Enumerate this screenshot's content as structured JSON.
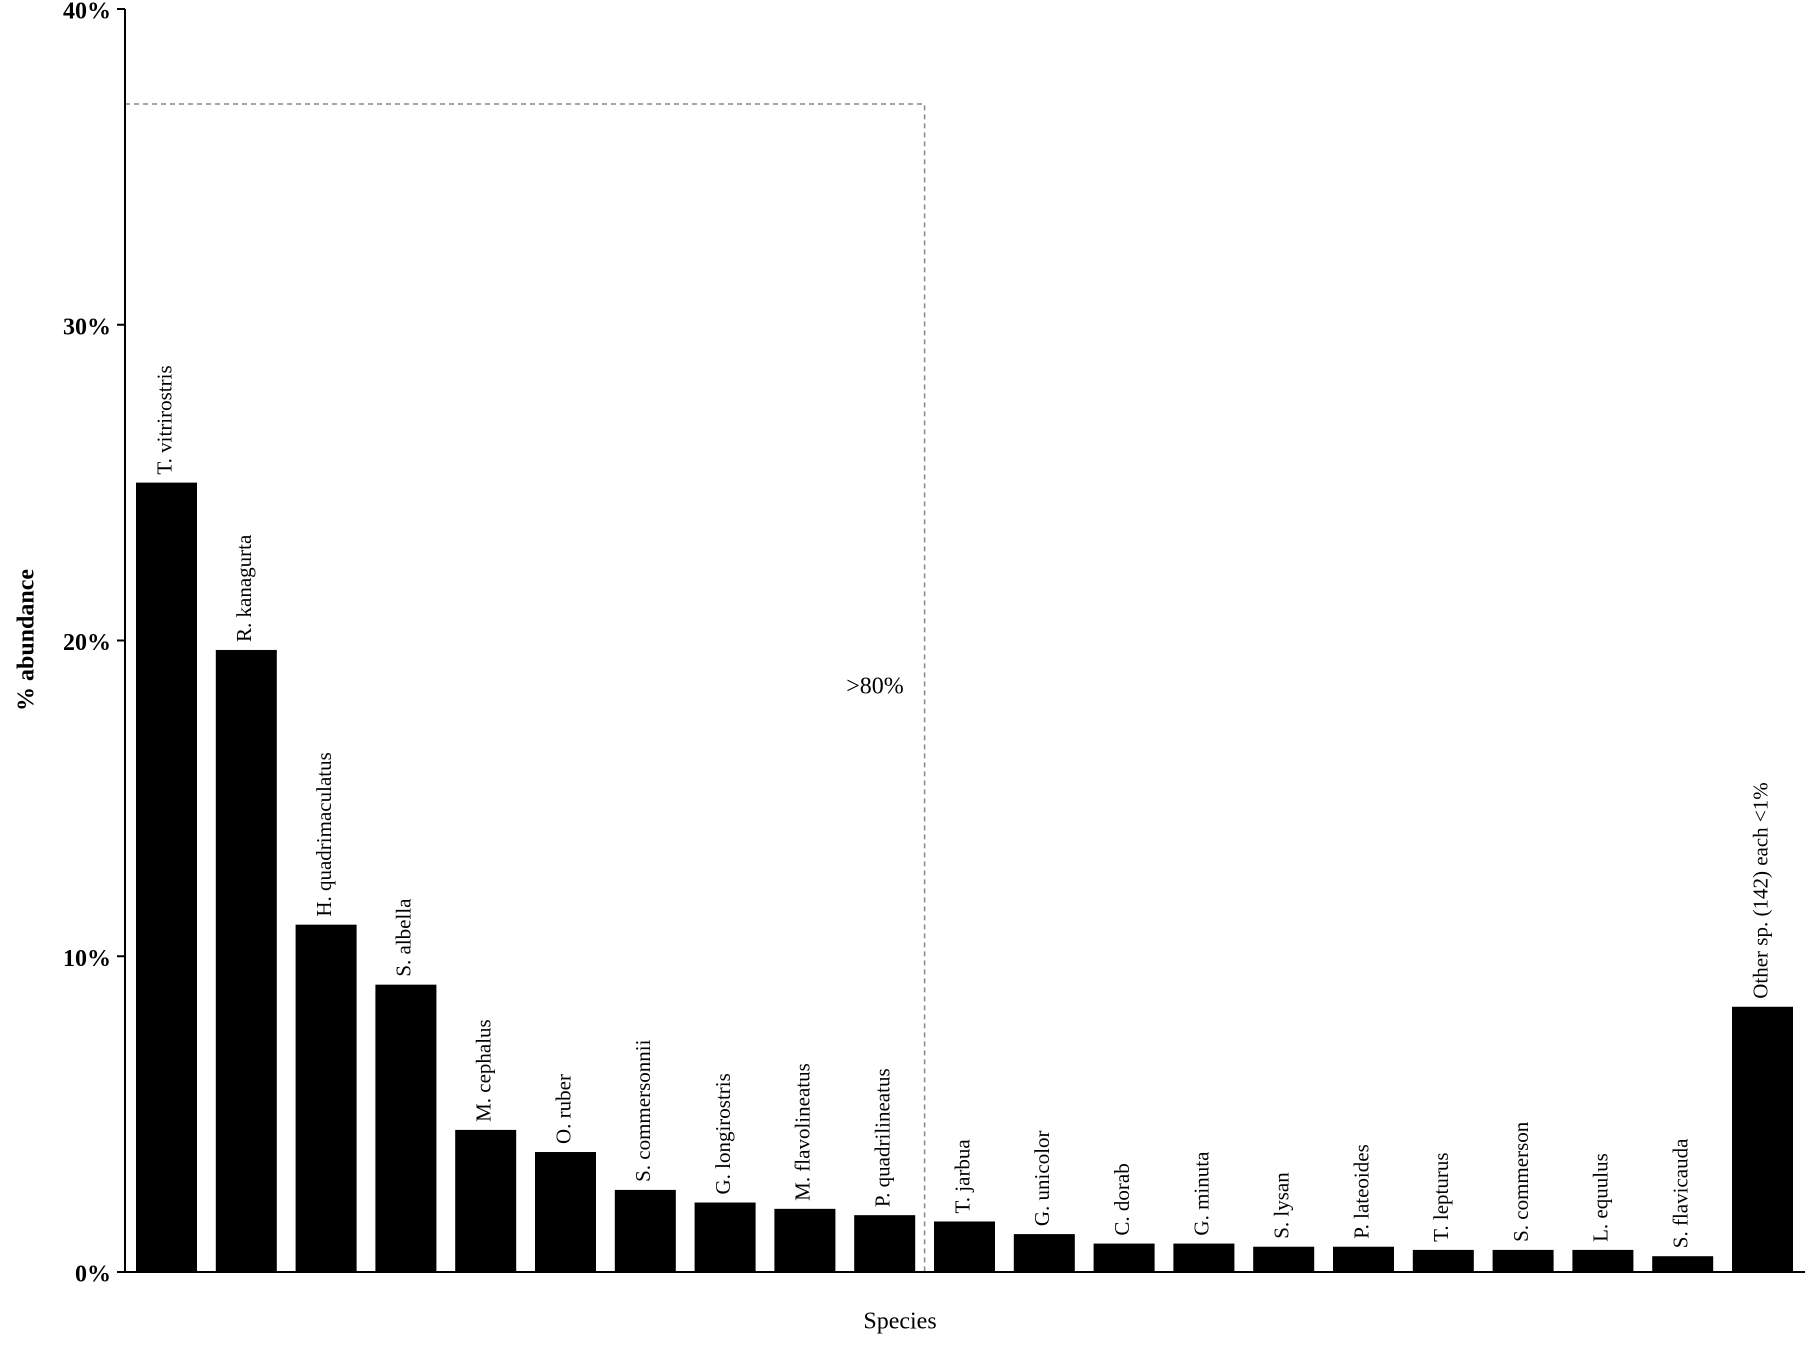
{
  "chart_data": {
    "type": "bar",
    "y_label": "% abundance",
    "x_label": "Species",
    "annotation": ">80%",
    "categories": [
      "T. vitrirostris",
      "R. kanagurta",
      "H. quadrimaculatus",
      "S. albella",
      "M. cephalus",
      "O. ruber",
      "S. commersonnii",
      "G. longirostris",
      "M. flavolineatus",
      "P. quadrilineatus",
      "T. jarbua",
      "G. unicolor",
      "C. dorab",
      "G. minuta",
      "S. lysan",
      "P. lateoides",
      "T. lepturus",
      "S. commerson",
      "L. equulus",
      "S. flavicauda",
      "Other sp. (142) each <1%"
    ],
    "values": [
      25.0,
      19.7,
      11.0,
      9.1,
      4.5,
      3.8,
      2.6,
      2.2,
      2.0,
      1.8,
      1.6,
      1.2,
      0.9,
      0.9,
      0.8,
      0.8,
      0.7,
      0.7,
      0.7,
      0.5,
      8.4
    ],
    "color": "#000000",
    "ylim": [
      0,
      40
    ],
    "yticks": [
      {
        "value": 0,
        "label": "0%"
      },
      {
        "value": 10,
        "label": "10%"
      },
      {
        "value": 20,
        "label": "20%"
      },
      {
        "value": 30,
        "label": "30%"
      },
      {
        "value": 40,
        "label": "40%"
      }
    ]
  }
}
